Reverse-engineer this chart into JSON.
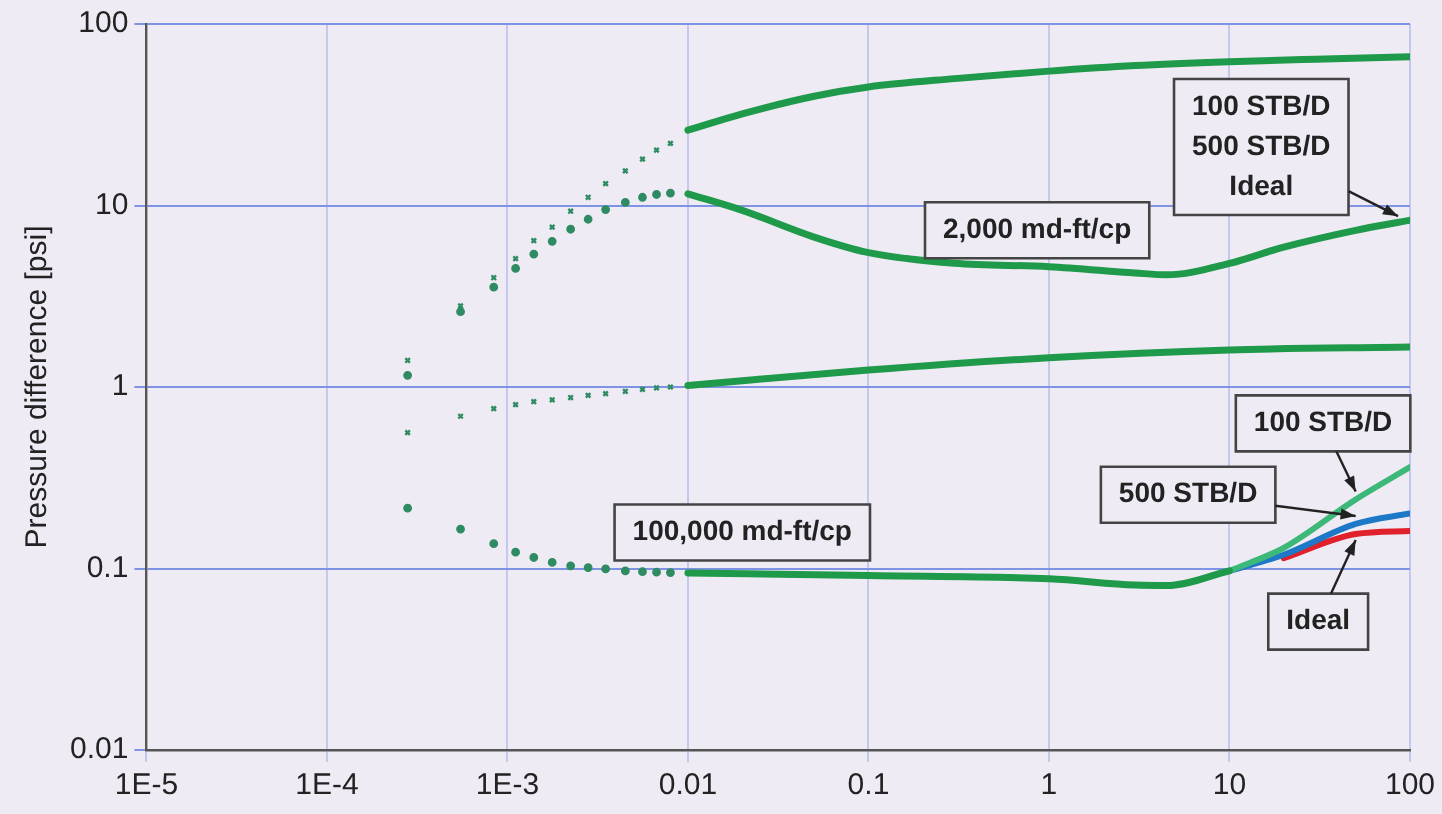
{
  "chart_data": {
    "type": "line",
    "ylabel": "Pressure difference [psi]",
    "log": "xy",
    "grid": true,
    "legend": false,
    "xlim": [
      1e-05,
      100
    ],
    "ylim": [
      0.01,
      100
    ],
    "xticks": [
      {
        "value": 1e-05,
        "label": "1E-5"
      },
      {
        "value": 0.0001,
        "label": "1E-4"
      },
      {
        "value": 0.001,
        "label": "1E-3"
      },
      0.01,
      0.1,
      1,
      10,
      100
    ],
    "yticks": [
      0.01,
      0.1,
      1,
      10,
      100
    ],
    "annotations": [
      "2,000 md-ft/cp",
      "100,000 md-ft/cp"
    ],
    "series": [
      {
        "type": "scatter",
        "marker": "cross",
        "color": "#2e8b62",
        "x": [
          0.00028,
          0.00055,
          0.00084,
          0.00111,
          0.0014,
          0.00177,
          0.00224,
          0.0028,
          0.0035,
          0.0045,
          0.0056,
          0.0067,
          0.008
        ],
        "values": [
          1.4,
          2.8,
          4.0,
          5.1,
          6.4,
          7.6,
          9.3,
          11.1,
          13.2,
          15.5,
          18,
          20.2,
          22
        ]
      },
      {
        "type": "scatter",
        "marker": "circle",
        "color": "#2e8b62",
        "x": [
          0.00028,
          0.00055,
          0.00084,
          0.00111,
          0.0014,
          0.00177,
          0.00224,
          0.0028,
          0.0035,
          0.0045,
          0.0056,
          0.0067,
          0.008
        ],
        "values": [
          1.16,
          2.6,
          3.55,
          4.5,
          5.4,
          6.35,
          7.4,
          8.4,
          9.5,
          10.4,
          11.1,
          11.5,
          11.7
        ]
      },
      {
        "type": "scatter",
        "marker": "cross",
        "color": "#2e8b62",
        "x": [
          0.00028,
          0.00055,
          0.00084,
          0.00111,
          0.0014,
          0.00177,
          0.00224,
          0.0028,
          0.0035,
          0.0045,
          0.0056,
          0.0067,
          0.008
        ],
        "values": [
          0.56,
          0.69,
          0.76,
          0.8,
          0.83,
          0.85,
          0.875,
          0.9,
          0.92,
          0.945,
          0.97,
          0.99,
          1.0
        ]
      },
      {
        "type": "scatter",
        "marker": "circle",
        "color": "#2e8b62",
        "x": [
          0.00028,
          0.00055,
          0.00084,
          0.00111,
          0.0014,
          0.00177,
          0.00224,
          0.0028,
          0.0035,
          0.0045,
          0.0056,
          0.0067,
          0.008
        ],
        "values": [
          0.215,
          0.165,
          0.137,
          0.123,
          0.115,
          0.108,
          0.1035,
          0.101,
          0.0995,
          0.097,
          0.096,
          0.0955,
          0.095
        ]
      },
      {
        "color": "#1f9a4a",
        "x": [
          0.01,
          0.02,
          0.05,
          0.1,
          0.3,
          1,
          3,
          10,
          30,
          100
        ],
        "values": [
          26,
          32,
          40,
          45,
          50,
          55,
          59,
          62,
          64,
          66
        ]
      },
      {
        "color": "#1f9a4a",
        "x": [
          0.01,
          0.02,
          0.05,
          0.1,
          0.3,
          1,
          3,
          4.5,
          10,
          20,
          50,
          100
        ],
        "values": [
          11.6,
          9.4,
          6.7,
          5.5,
          4.8,
          4.6,
          4.25,
          4.15,
          4.8,
          5.9,
          7.3,
          8.3
        ]
      },
      {
        "color": "#1f9a4a",
        "x": [
          0.01,
          0.1,
          1,
          10,
          100
        ],
        "values": [
          1.02,
          1.24,
          1.45,
          1.6,
          1.66
        ]
      },
      {
        "color": "#1f9a4a",
        "x": [
          0.01,
          0.1,
          1,
          3,
          4.5,
          10
        ],
        "values": [
          0.0946,
          0.0914,
          0.0877,
          0.081,
          0.0805,
          0.097
        ]
      },
      {
        "name": "100 STB/D",
        "color": "#3cb878",
        "x": [
          10,
          20,
          50,
          100
        ],
        "values": [
          0.097,
          0.13,
          0.24,
          0.362
        ]
      },
      {
        "name": "500 STB/D",
        "color": "#1e78c8",
        "x": [
          10,
          20,
          50,
          100
        ],
        "values": [
          0.097,
          0.119,
          0.176,
          0.201
        ]
      },
      {
        "name": "Ideal",
        "color": "#e0202a",
        "x": [
          20,
          50,
          100
        ],
        "values": [
          0.114,
          0.155,
          0.161
        ]
      }
    ]
  }
}
